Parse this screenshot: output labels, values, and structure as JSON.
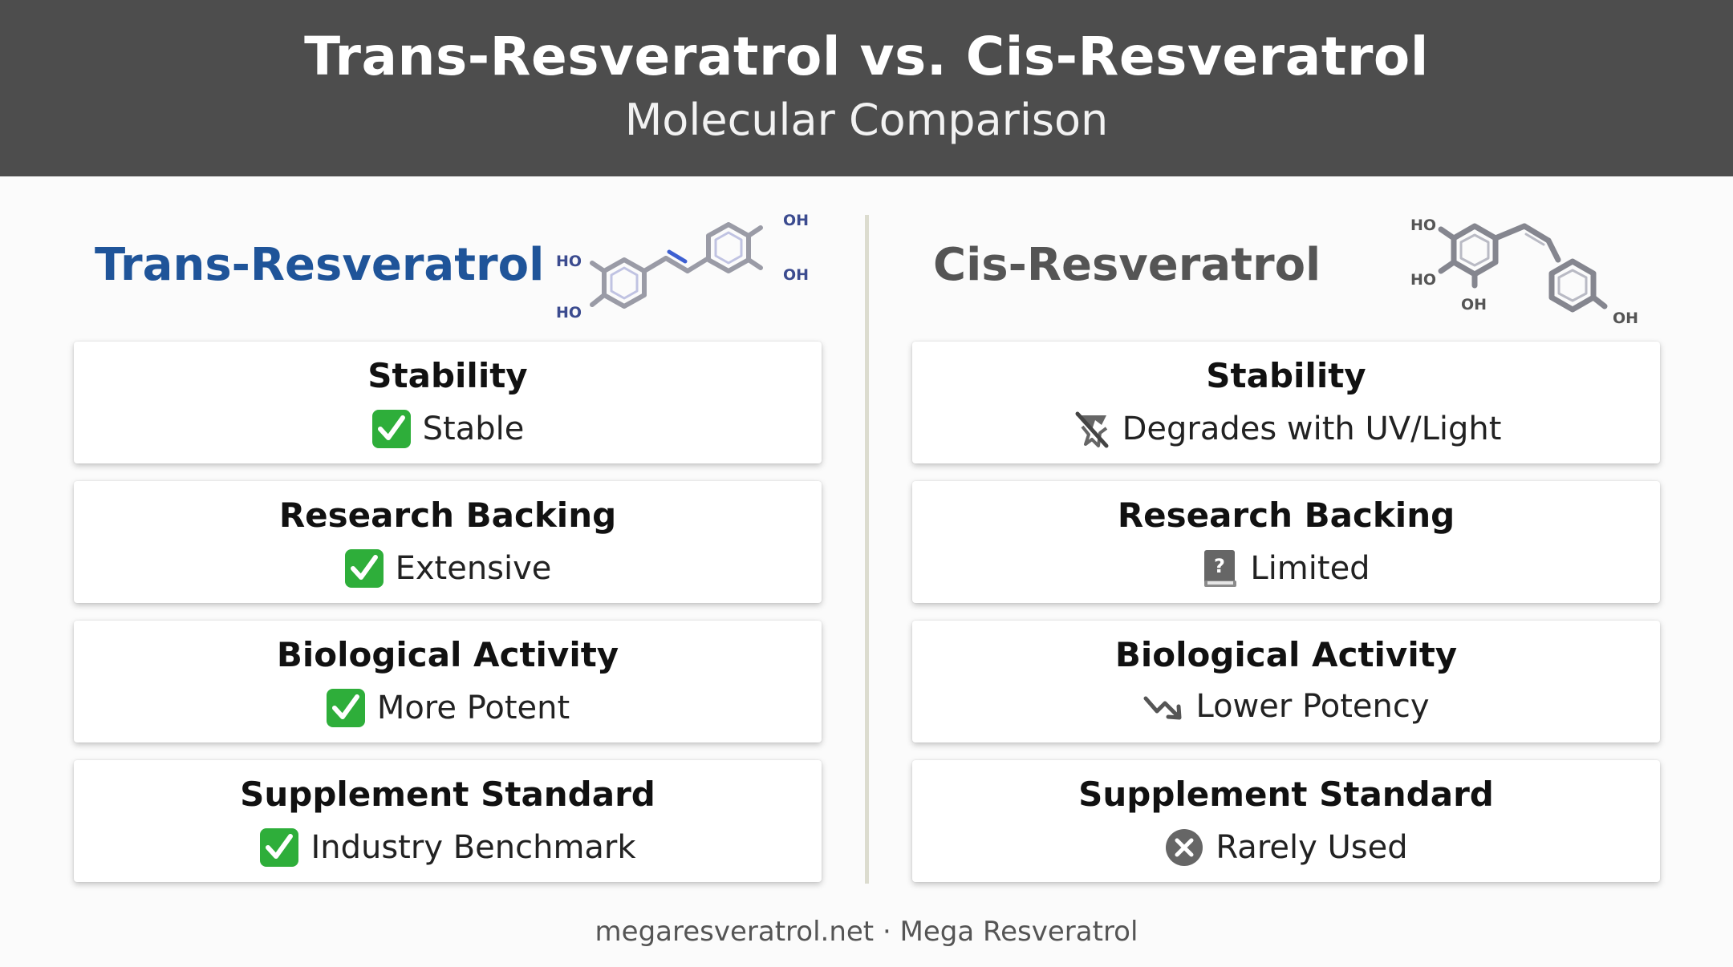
{
  "header": {
    "title": "Trans-Resveratrol vs. Cis-Resveratrol",
    "subtitle": "Molecular Comparison"
  },
  "trans": {
    "title": "Trans-Resveratrol",
    "molecule_labels": [
      "HO",
      "HO",
      "OH",
      "OH"
    ],
    "cards": [
      {
        "label": "Stability",
        "value": "Stable",
        "icon": "check-icon"
      },
      {
        "label": "Research Backing",
        "value": "Extensive",
        "icon": "check-icon"
      },
      {
        "label": "Biological Activity",
        "value": "More Potent",
        "icon": "check-icon"
      },
      {
        "label": "Supplement Standard",
        "value": "Industry Benchmark",
        "icon": "check-icon"
      }
    ]
  },
  "cis": {
    "title": "Cis-Resveratrol",
    "molecule_labels": [
      "HO",
      "HO",
      "OH",
      "OH"
    ],
    "cards": [
      {
        "label": "Stability",
        "value": "Degrades with UV/Light",
        "icon": "no-light-icon"
      },
      {
        "label": "Research Backing",
        "value": "Limited",
        "icon": "question-book-icon"
      },
      {
        "label": "Biological Activity",
        "value": "Lower Potency",
        "icon": "trend-down-icon"
      },
      {
        "label": "Supplement Standard",
        "value": "Rarely Used",
        "icon": "x-circle-icon"
      }
    ]
  },
  "footer": "megaresveratrol.net · Mega Resveratrol",
  "colors": {
    "header_bg": "#4d4d4d",
    "trans_title": "#1f5499",
    "cis_title": "#555555",
    "check_green": "#2eae3a",
    "divider": "#dcdccf"
  }
}
